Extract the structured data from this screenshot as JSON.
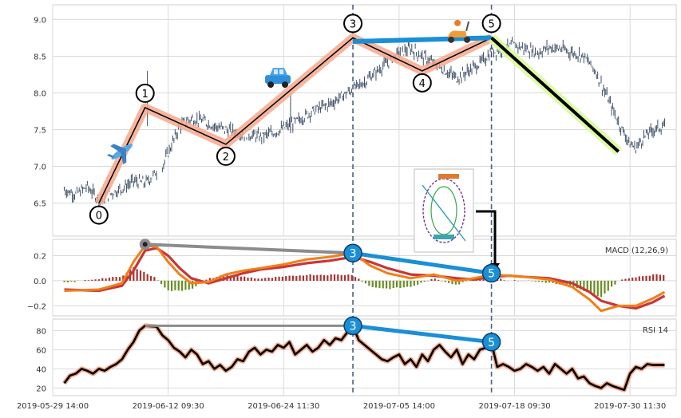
{
  "chart_data": {
    "type": "line",
    "x_ticks": [
      "2019-05-29 14:00",
      "2019-06-12 09:30",
      "2019-06-24 11:30",
      "2019-07-05 14:00",
      "2019-07-18 09:30",
      "2019-07-30 11:30"
    ],
    "x_tick_index": [
      0,
      100,
      200,
      300,
      400,
      500
    ],
    "x_range": [
      0,
      540
    ],
    "price": {
      "ylim": [
        6.05,
        9.2
      ],
      "yticks": [
        6.5,
        7.0,
        7.5,
        8.0,
        8.5,
        9.0
      ],
      "tick_labels": [
        "6.5",
        "7.0",
        "7.5",
        "8.0",
        "8.5",
        "9.0"
      ],
      "colors": {
        "candle": "#3d4e66",
        "wave": "#f4a88c",
        "wave_line": "#000000",
        "divergence": "#1a8fd6",
        "trend": "#000000",
        "trend_glow": "#d9f99d"
      },
      "anchors": [
        [
          10,
          6.68
        ],
        [
          20,
          6.62
        ],
        [
          30,
          6.72
        ],
        [
          40,
          6.55
        ],
        [
          50,
          6.63
        ],
        [
          60,
          6.7
        ],
        [
          70,
          6.8
        ],
        [
          80,
          6.77
        ],
        [
          95,
          7.0
        ],
        [
          110,
          7.55
        ],
        [
          120,
          7.65
        ],
        [
          130,
          7.62
        ],
        [
          140,
          7.55
        ],
        [
          150,
          7.5
        ],
        [
          165,
          7.45
        ],
        [
          180,
          7.4
        ],
        [
          195,
          7.48
        ],
        [
          210,
          7.6
        ],
        [
          225,
          7.75
        ],
        [
          240,
          7.85
        ],
        [
          255,
          8.0
        ],
        [
          270,
          8.15
        ],
        [
          285,
          8.35
        ],
        [
          300,
          8.55
        ],
        [
          310,
          8.6
        ],
        [
          320,
          8.5
        ],
        [
          330,
          8.4
        ],
        [
          340,
          8.3
        ],
        [
          350,
          8.2
        ],
        [
          360,
          8.3
        ],
        [
          370,
          8.4
        ],
        [
          380,
          8.55
        ],
        [
          390,
          8.6
        ],
        [
          400,
          8.65
        ],
        [
          410,
          8.6
        ],
        [
          420,
          8.55
        ],
        [
          430,
          8.62
        ],
        [
          440,
          8.6
        ],
        [
          450,
          8.55
        ],
        [
          460,
          8.5
        ],
        [
          470,
          8.3
        ],
        [
          480,
          7.95
        ],
        [
          490,
          7.6
        ],
        [
          500,
          7.3
        ],
        [
          505,
          7.25
        ],
        [
          512,
          7.4
        ],
        [
          520,
          7.5
        ],
        [
          530,
          7.55
        ]
      ],
      "waves": [
        {
          "label": "0",
          "x": 40,
          "y": 6.5
        },
        {
          "label": "1",
          "x": 80,
          "y": 7.8
        },
        {
          "label": "2",
          "x": 150,
          "y": 7.3
        },
        {
          "label": "3",
          "x": 260,
          "y": 8.75
        },
        {
          "label": "4",
          "x": 320,
          "y": 8.3
        },
        {
          "label": "5",
          "x": 380,
          "y": 8.75
        }
      ],
      "divergence_line": [
        [
          260,
          8.7
        ],
        [
          380,
          8.75
        ]
      ],
      "trend_line": [
        [
          380,
          8.75
        ],
        [
          490,
          7.2
        ]
      ],
      "vlines": [
        260,
        380
      ]
    },
    "macd": {
      "label": "MACD (12,26,9)",
      "ylim": [
        -0.28,
        0.33
      ],
      "yticks": [
        0.2,
        0.0,
        -0.2
      ],
      "tick_labels": [
        "0.2",
        "0.0",
        "−0.2"
      ],
      "colors": {
        "macd": "#f07f1a",
        "signal": "#c93636",
        "hist_pos": "#a83232",
        "hist_neg": "#6b8e23"
      },
      "macd_anchors": [
        [
          10,
          -0.08
        ],
        [
          40,
          -0.07
        ],
        [
          60,
          -0.02
        ],
        [
          70,
          0.15
        ],
        [
          80,
          0.28
        ],
        [
          90,
          0.27
        ],
        [
          100,
          0.15
        ],
        [
          110,
          0.05
        ],
        [
          120,
          -0.02
        ],
        [
          135,
          -0.01
        ],
        [
          150,
          0.05
        ],
        [
          165,
          0.08
        ],
        [
          180,
          0.1
        ],
        [
          200,
          0.13
        ],
        [
          220,
          0.17
        ],
        [
          240,
          0.19
        ],
        [
          260,
          0.22
        ],
        [
          275,
          0.12
        ],
        [
          290,
          0.06
        ],
        [
          310,
          0.02
        ],
        [
          330,
          0.05
        ],
        [
          350,
          0.0
        ],
        [
          365,
          0.02
        ],
        [
          380,
          0.05
        ],
        [
          395,
          0.04
        ],
        [
          410,
          0.03
        ],
        [
          430,
          0.01
        ],
        [
          450,
          -0.05
        ],
        [
          465,
          -0.15
        ],
        [
          475,
          -0.24
        ],
        [
          490,
          -0.2
        ],
        [
          505,
          -0.2
        ],
        [
          520,
          -0.14
        ],
        [
          530,
          -0.09
        ]
      ],
      "signal_anchors": [
        [
          10,
          -0.07
        ],
        [
          40,
          -0.08
        ],
        [
          60,
          -0.04
        ],
        [
          70,
          0.08
        ],
        [
          80,
          0.24
        ],
        [
          90,
          0.26
        ],
        [
          100,
          0.2
        ],
        [
          110,
          0.1
        ],
        [
          120,
          0.02
        ],
        [
          135,
          -0.02
        ],
        [
          150,
          0.02
        ],
        [
          165,
          0.06
        ],
        [
          180,
          0.09
        ],
        [
          200,
          0.11
        ],
        [
          220,
          0.14
        ],
        [
          240,
          0.16
        ],
        [
          260,
          0.19
        ],
        [
          275,
          0.15
        ],
        [
          290,
          0.1
        ],
        [
          310,
          0.05
        ],
        [
          330,
          0.04
        ],
        [
          350,
          0.02
        ],
        [
          365,
          0.01
        ],
        [
          380,
          0.03
        ],
        [
          395,
          0.04
        ],
        [
          410,
          0.03
        ],
        [
          430,
          0.02
        ],
        [
          450,
          -0.02
        ],
        [
          465,
          -0.09
        ],
        [
          475,
          -0.16
        ],
        [
          490,
          -0.2
        ],
        [
          505,
          -0.22
        ],
        [
          520,
          -0.17
        ],
        [
          530,
          -0.12
        ]
      ],
      "divergence_line": [
        [
          260,
          0.22
        ],
        [
          380,
          0.06
        ]
      ],
      "gray_line": [
        [
          80,
          0.29
        ],
        [
          260,
          0.22
        ]
      ],
      "markers": [
        {
          "label": "3",
          "x": 260,
          "y": 0.22
        },
        {
          "label": "5",
          "x": 380,
          "y": 0.06
        }
      ],
      "pivot": {
        "x": 80,
        "y": 0.29
      }
    },
    "rsi": {
      "label": "RSI 14",
      "ylim": [
        12,
        92
      ],
      "yticks": [
        20,
        40,
        60,
        80
      ],
      "tick_labels": [
        "20",
        "40",
        "60",
        "80"
      ],
      "colors": {
        "line": "#000000",
        "glow": "#f4a88c"
      },
      "anchors": [
        [
          10,
          25
        ],
        [
          15,
          33
        ],
        [
          20,
          35
        ],
        [
          25,
          40
        ],
        [
          30,
          38
        ],
        [
          35,
          35
        ],
        [
          40,
          40
        ],
        [
          45,
          38
        ],
        [
          50,
          42
        ],
        [
          55,
          45
        ],
        [
          60,
          50
        ],
        [
          65,
          60
        ],
        [
          70,
          68
        ],
        [
          75,
          80
        ],
        [
          80,
          85
        ],
        [
          90,
          84
        ],
        [
          95,
          75
        ],
        [
          100,
          70
        ],
        [
          105,
          62
        ],
        [
          110,
          58
        ],
        [
          115,
          52
        ],
        [
          120,
          60
        ],
        [
          125,
          55
        ],
        [
          130,
          45
        ],
        [
          135,
          48
        ],
        [
          140,
          40
        ],
        [
          145,
          44
        ],
        [
          150,
          38
        ],
        [
          155,
          42
        ],
        [
          160,
          50
        ],
        [
          165,
          48
        ],
        [
          170,
          58
        ],
        [
          175,
          62
        ],
        [
          180,
          55
        ],
        [
          185,
          60
        ],
        [
          190,
          58
        ],
        [
          195,
          65
        ],
        [
          200,
          62
        ],
        [
          205,
          68
        ],
        [
          210,
          55
        ],
        [
          215,
          60
        ],
        [
          220,
          65
        ],
        [
          225,
          58
        ],
        [
          230,
          62
        ],
        [
          235,
          70
        ],
        [
          240,
          65
        ],
        [
          245,
          72
        ],
        [
          250,
          70
        ],
        [
          255,
          78
        ],
        [
          260,
          85
        ],
        [
          265,
          70
        ],
        [
          270,
          65
        ],
        [
          275,
          60
        ],
        [
          280,
          55
        ],
        [
          285,
          50
        ],
        [
          290,
          48
        ],
        [
          295,
          52
        ],
        [
          300,
          55
        ],
        [
          305,
          45
        ],
        [
          310,
          50
        ],
        [
          315,
          42
        ],
        [
          320,
          55
        ],
        [
          325,
          48
        ],
        [
          330,
          60
        ],
        [
          335,
          65
        ],
        [
          340,
          58
        ],
        [
          345,
          52
        ],
        [
          350,
          60
        ],
        [
          355,
          45
        ],
        [
          360,
          55
        ],
        [
          365,
          50
        ],
        [
          370,
          60
        ],
        [
          375,
          62
        ],
        [
          380,
          67
        ],
        [
          385,
          42
        ],
        [
          390,
          45
        ],
        [
          395,
          42
        ],
        [
          400,
          38
        ],
        [
          405,
          40
        ],
        [
          410,
          45
        ],
        [
          415,
          42
        ],
        [
          420,
          38
        ],
        [
          425,
          42
        ],
        [
          430,
          35
        ],
        [
          435,
          45
        ],
        [
          440,
          40
        ],
        [
          445,
          35
        ],
        [
          450,
          40
        ],
        [
          455,
          30
        ],
        [
          460,
          32
        ],
        [
          465,
          25
        ],
        [
          470,
          22
        ],
        [
          475,
          20
        ],
        [
          480,
          25
        ],
        [
          485,
          22
        ],
        [
          490,
          20
        ],
        [
          495,
          18
        ],
        [
          500,
          35
        ],
        [
          505,
          42
        ],
        [
          510,
          40
        ],
        [
          515,
          45
        ],
        [
          520,
          44
        ],
        [
          530,
          44
        ]
      ],
      "divergence_line": [
        [
          260,
          85
        ],
        [
          380,
          68
        ]
      ],
      "gray_line": [
        [
          80,
          85
        ],
        [
          260,
          85
        ]
      ],
      "markers": [
        {
          "label": "3",
          "x": 260,
          "y": 85
        },
        {
          "label": "5",
          "x": 380,
          "y": 68
        }
      ]
    }
  }
}
